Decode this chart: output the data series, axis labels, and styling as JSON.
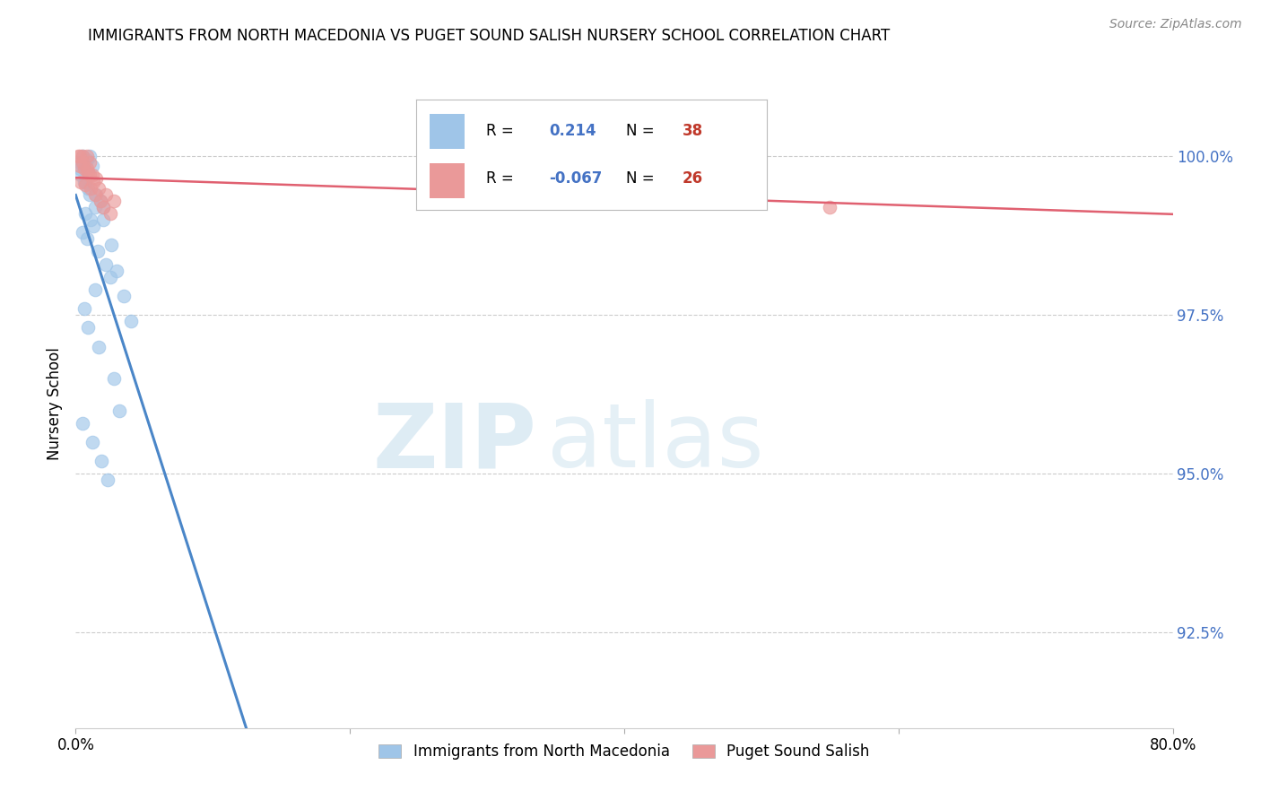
{
  "title": "IMMIGRANTS FROM NORTH MACEDONIA VS PUGET SOUND SALISH NURSERY SCHOOL CORRELATION CHART",
  "source": "Source: ZipAtlas.com",
  "ylabel": "Nursery School",
  "xmin": 0.0,
  "xmax": 80.0,
  "ymin": 91.0,
  "ymax": 101.2,
  "yticks": [
    92.5,
    95.0,
    97.5,
    100.0
  ],
  "ytick_labels": [
    "92.5%",
    "95.0%",
    "97.5%",
    "100.0%"
  ],
  "xticks": [
    0.0,
    20.0,
    40.0,
    60.0,
    80.0
  ],
  "xtick_labels": [
    "0.0%",
    "",
    "",
    "",
    "80.0%"
  ],
  "blue_R": 0.214,
  "blue_N": 38,
  "pink_R": -0.067,
  "pink_N": 26,
  "blue_color": "#9fc5e8",
  "pink_color": "#ea9999",
  "blue_line_color": "#4a86c8",
  "pink_line_color": "#e06070",
  "blue_label": "Immigrants from North Macedonia",
  "pink_label": "Puget Sound Salish",
  "watermark_zip": "ZIP",
  "watermark_atlas": "atlas",
  "blue_x": [
    0.3,
    0.5,
    0.8,
    1.0,
    1.2,
    0.4,
    0.6,
    0.9,
    1.5,
    1.8,
    2.0,
    0.7,
    1.1,
    1.3,
    0.5,
    0.8,
    1.6,
    2.2,
    2.5,
    1.4,
    0.6,
    0.9,
    1.7,
    2.8,
    3.2,
    0.3,
    0.7,
    1.0,
    1.4,
    2.0,
    2.6,
    3.0,
    3.5,
    4.0,
    0.5,
    1.2,
    1.9,
    2.3
  ],
  "blue_y": [
    99.9,
    100.0,
    99.95,
    100.0,
    99.85,
    99.7,
    99.6,
    99.5,
    99.4,
    99.3,
    99.2,
    99.1,
    99.0,
    98.9,
    98.8,
    98.7,
    98.5,
    98.3,
    98.1,
    97.9,
    97.6,
    97.3,
    97.0,
    96.5,
    96.0,
    99.8,
    99.6,
    99.4,
    99.2,
    99.0,
    98.6,
    98.2,
    97.8,
    97.4,
    95.8,
    95.5,
    95.2,
    94.9
  ],
  "pink_x": [
    0.2,
    0.5,
    0.8,
    1.0,
    0.3,
    0.6,
    0.9,
    1.2,
    1.5,
    0.4,
    0.7,
    1.1,
    1.4,
    1.8,
    2.0,
    2.5,
    30.0,
    55.0,
    0.3,
    0.5,
    0.8,
    1.0,
    1.3,
    1.7,
    2.2,
    2.8
  ],
  "pink_y": [
    100.0,
    100.0,
    100.0,
    99.9,
    99.85,
    99.8,
    99.75,
    99.7,
    99.65,
    99.6,
    99.55,
    99.5,
    99.4,
    99.3,
    99.2,
    99.1,
    99.7,
    99.2,
    100.0,
    99.9,
    99.8,
    99.7,
    99.6,
    99.5,
    99.4,
    99.3
  ]
}
